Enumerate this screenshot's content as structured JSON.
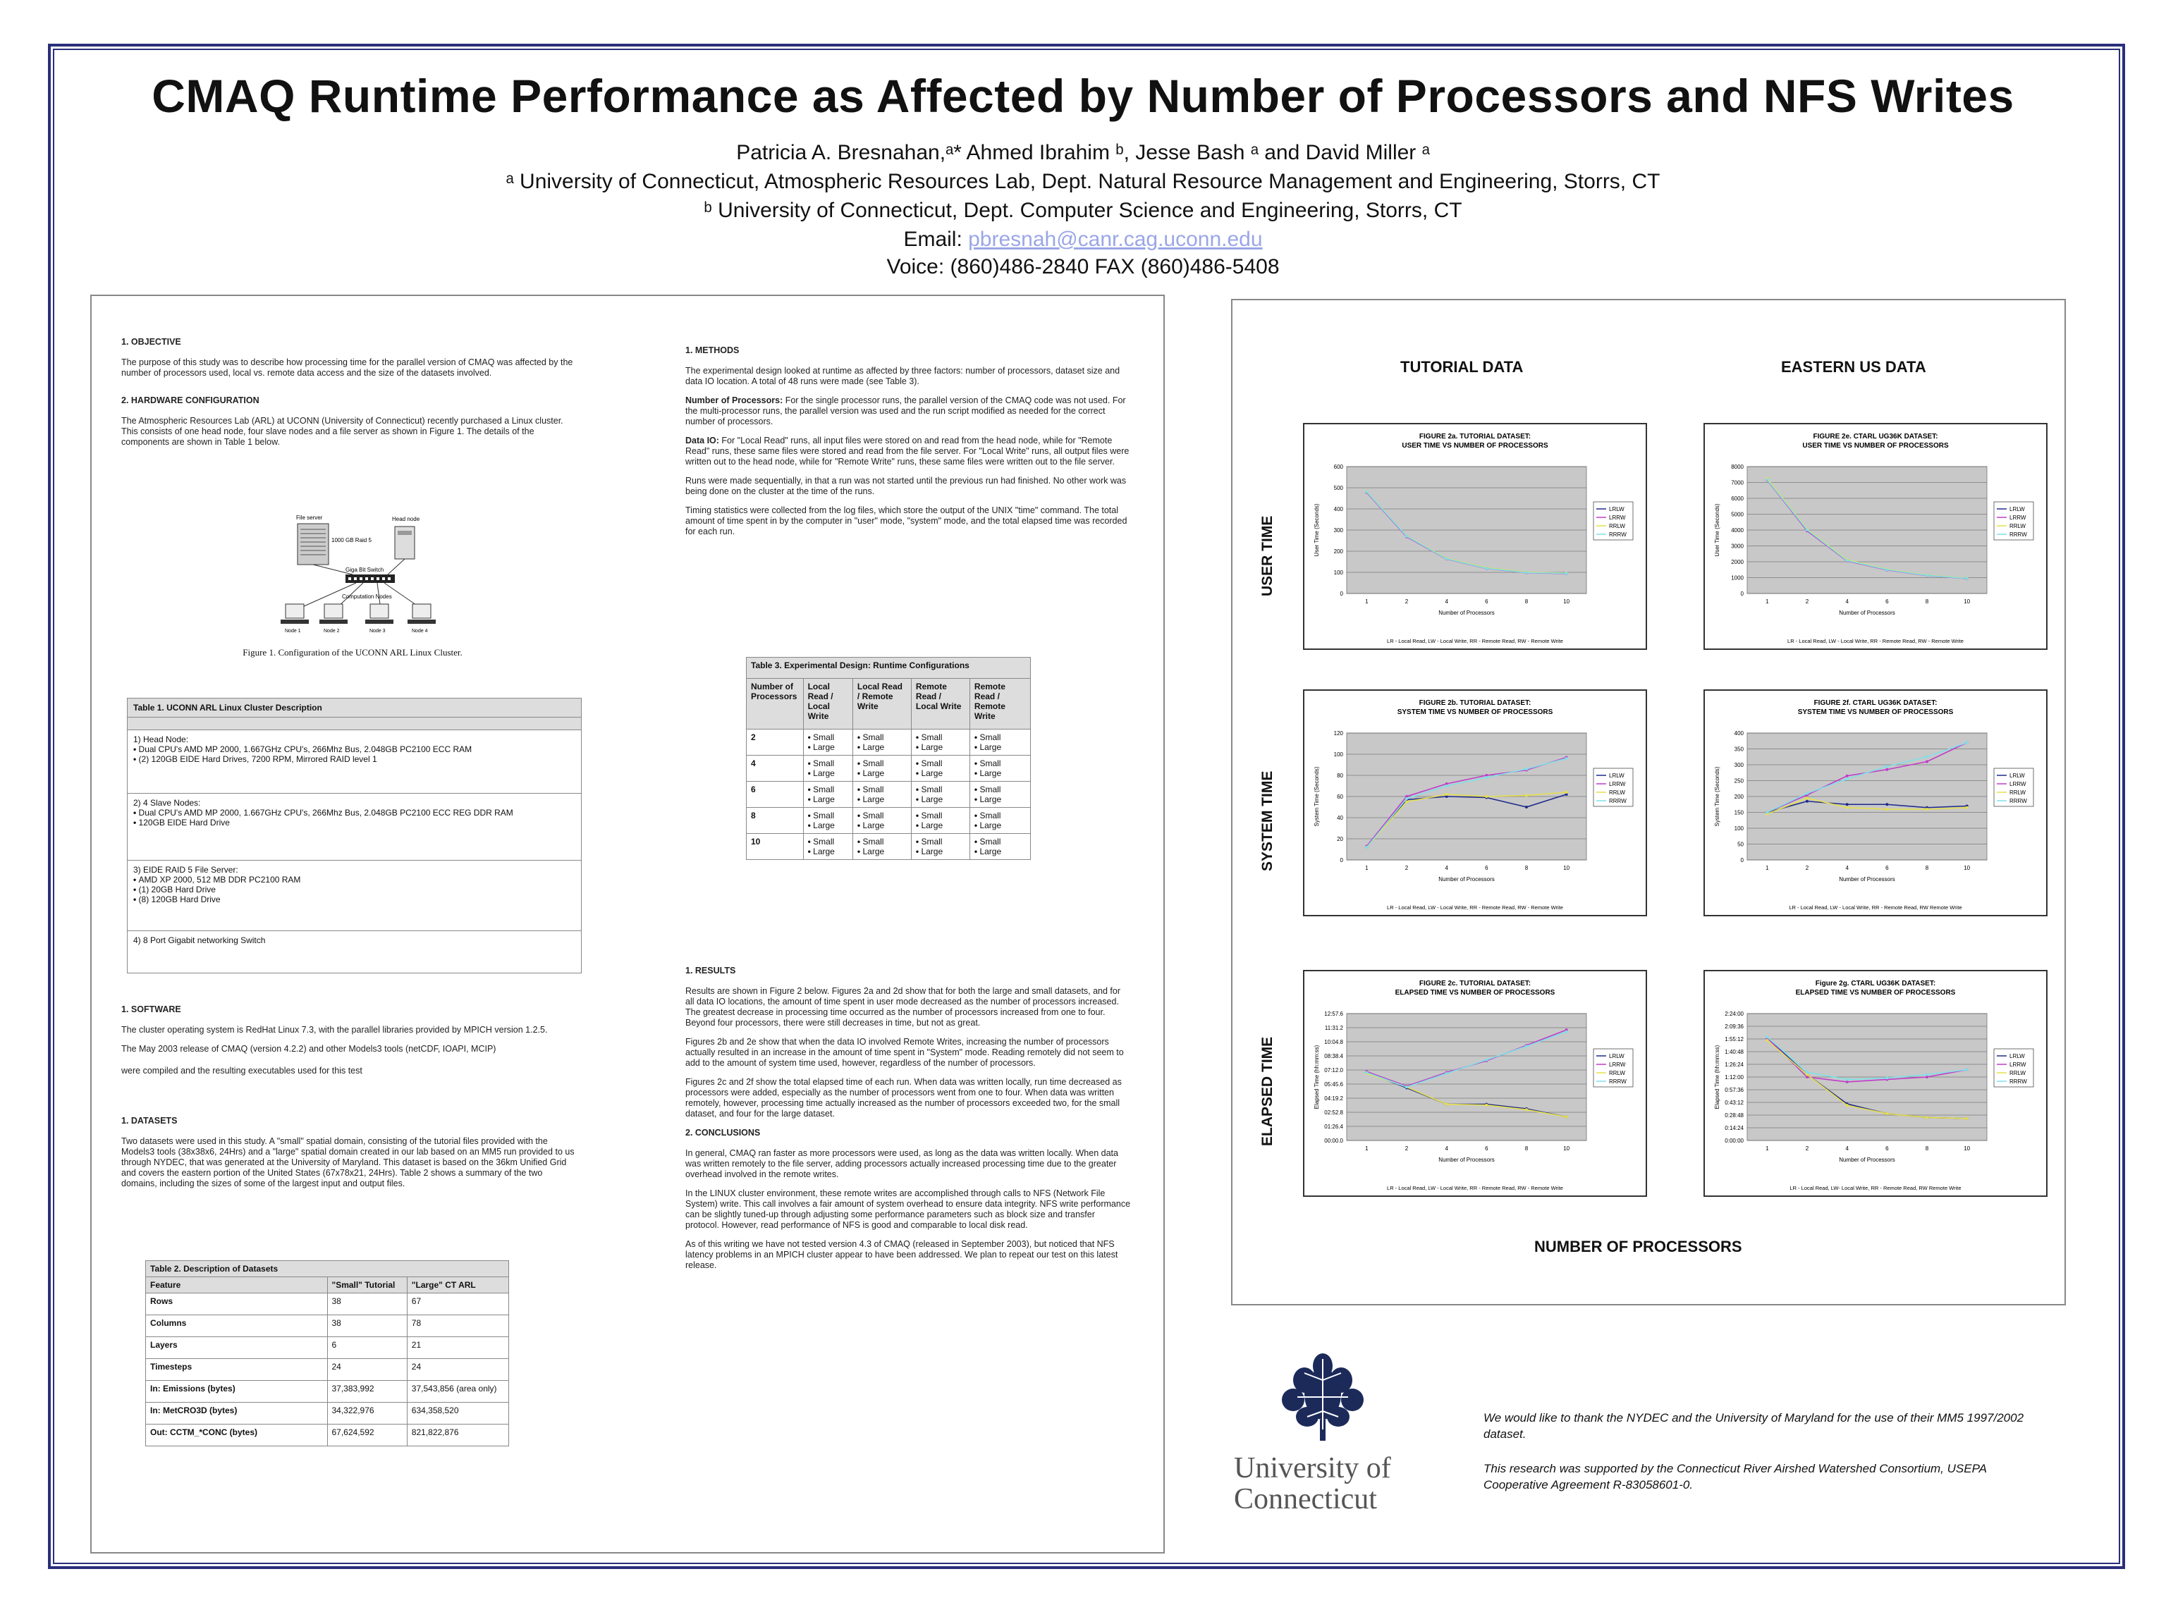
{
  "title": "CMAQ Runtime Performance as Affected by Number of Processors and NFS Writes",
  "authors": "Patricia A. Bresnahan,ᵃ*   Ahmed Ibrahim ᵇ, Jesse Bash ᵃ and David Miller ᵃ",
  "affil_a": "ᵃ University of Connecticut, Atmospheric Resources Lab, Dept. Natural Resource Management and Engineering, Storrs, CT",
  "affil_b": "ᵇ University of Connecticut, Dept. Computer Science and Engineering, Storrs, CT",
  "email_label": "Email: ",
  "email": "pbresnah@canr.cag.uconn.edu",
  "voice": "Voice: (860)486-2840   FAX (860)486-5408",
  "left": {
    "objective_hd": "1.  OBJECTIVE",
    "objective": "The purpose of this study was to describe how processing time for the parallel version of CMAQ was affected by the number of processors used, local vs. remote data access and the size of the datasets involved.",
    "hardware_hd": "2.  HARDWARE CONFIGURATION",
    "hardware": "The Atmospheric Resources Lab (ARL) at UCONN  (University of Connecticut) recently purchased a Linux cluster.  This consists of one head node, four slave nodes and a file server as shown in Figure 1.  The details of the components are shown in Table 1 below.",
    "fig1": {
      "file_server": "File server",
      "raid": "1000 GB Raid 5",
      "head_node": "Head node",
      "switch": "Giga Bit Switch",
      "comp_nodes": "Computation Nodes",
      "nodes": [
        "Node 1",
        "Node 2",
        "Node 3",
        "Node 4"
      ]
    },
    "fig1_caption": "Figure 1.  Configuration of the UCONN ARL Linux Cluster.",
    "table1": {
      "caption": "Table 1.  UCONN ARL Linux Cluster Description",
      "sections": [
        {
          "head": "1) Head Node:",
          "items": [
            "Dual CPU's AMD MP 2000, 1.667GHz CPU's, 266Mhz Bus, 2.048GB PC2100 ECC RAM",
            "(2) 120GB EIDE Hard Drives, 7200 RPM, Mirrored RAID level 1"
          ]
        },
        {
          "head": "2) 4 Slave Nodes:",
          "items": [
            "Dual CPU's AMD MP 2000, 1.667GHz CPU's, 266Mhz Bus, 2.048GB PC2100 ECC REG DDR RAM",
            "120GB EIDE Hard Drive"
          ]
        },
        {
          "head": "3) EIDE RAID 5 File Server:",
          "items": [
            "AMD XP 2000, 512 MB DDR PC2100 RAM",
            "(1) 20GB Hard Drive",
            "(8) 120GB Hard Drive"
          ]
        },
        {
          "head": "4) 8 Port Gigabit networking Switch",
          "items": []
        }
      ]
    },
    "software_hd": "1.  SOFTWARE",
    "software1": "The cluster operating system is RedHat Linux 7.3, with the parallel libraries provided by MPICH version 1.2.5.",
    "software2": "The May 2003 release of CMAQ (version 4.2.2) and other Models3 tools (netCDF, IOAPI, MCIP)",
    "software3": "were compiled and the resulting executables used for this test",
    "datasets_hd": "1.  DATASETS",
    "datasets": "Two datasets were used in this study.  A \"small\" spatial domain, consisting of the tutorial files provided with the Models3 tools (38x38x6, 24Hrs) and a \"large\" spatial domain created in our lab based on an MM5 run provided to us through NYDEC, that was generated at the University of Maryland.  This dataset is based on the 36km Unified Grid and covers the eastern portion of the United States (67x78x21, 24Hrs).  Table 2 shows a summary of the two domains, including the sizes of some of the largest input and output files.",
    "table2": {
      "caption": "Table 2.  Description of Datasets",
      "headers": [
        "Feature",
        "\"Small\" Tutorial",
        "\"Large\" CT ARL"
      ],
      "rows": [
        [
          "Rows",
          "38",
          "67"
        ],
        [
          "Columns",
          "38",
          "78"
        ],
        [
          "Layers",
          "6",
          "21"
        ],
        [
          "Timesteps",
          "24",
          "24"
        ],
        [
          "In: Emissions (bytes)",
          "37,383,992",
          "37,543,856 (area only)"
        ],
        [
          "In: MetCRO3D (bytes)",
          "34,322,976",
          "634,358,520"
        ],
        [
          "Out: CCTM_*CONC (bytes)",
          "67,624,592",
          "821,822,876"
        ]
      ]
    }
  },
  "middle": {
    "methods_hd": "1.  METHODS",
    "methods1": "The experimental design looked at runtime as affected by three factors:  number of processors, dataset size and data IO location.  A total of 48 runs were made (see Table 3).",
    "methods2_b": "Number of Processors:",
    "methods2": "  For the single processor runs, the parallel version of the CMAQ code was not used.  For the multi-processor runs, the parallel version was used and the run script modified as needed for the correct number of processors.",
    "methods3_b": "Data IO:",
    "methods3": "  For \"Local Read\" runs, all input files were stored on and read from the head node, while for \"Remote Read\" runs, these same files were stored and read from the file server.  For \"Local Write\" runs, all output files were written out to the head node, while for \"Remote Write\" runs, these same files were written out to the file server.",
    "methods4": "Runs were made sequentially, in that a run was not started until the previous run had finished.  No other work was being done on the cluster at the time of the runs.",
    "methods5": "Timing statistics were collected from the log files, which store the output of the UNIX \"time\" command.  The total amount of time spent in by the computer in \"user\" mode, \"system\" mode, and the total elapsed time was recorded for each run.",
    "table3": {
      "caption": "Table 3.  Experimental Design: Runtime Configurations",
      "headers": [
        "Number of Processors",
        "Local Read / Local Write",
        "Local Read / Remote Write",
        "Remote Read / Local Write",
        "Remote Read / Remote Write"
      ],
      "header_overlay": "Small Large",
      "rows": [
        "2",
        "4",
        "6",
        "8",
        "10"
      ],
      "cell_items": [
        "Small",
        "Large"
      ]
    },
    "results_hd": "1.  RESULTS",
    "results1": "Results are shown in Figure 2 below.  Figures 2a and 2d show that for both the large and small datasets, and for all data IO locations, the amount of time spent in user mode decreased as the number of processors increased.  The greatest decrease in processing time occurred as the number of processors increased from one to four.  Beyond four processors, there were still decreases in time, but not as great.",
    "results2": "Figures 2b and 2e show that when the data IO involved Remote Writes, increasing the number of processors actually resulted in an increase in the amount of time spent in \"System\" mode.  Reading remotely did not seem to add to the amount of system time used, however, regardless of the number of processors.",
    "results3": "Figures 2c and 2f show the total elapsed time of each run.  When data was written locally, run time decreased as processors were added, especially as the number of processors went from one to four.  When data was written remotely, however, processing time actually increased as the number of processors exceeded two, for the small dataset, and four for the large dataset.",
    "conclusions_hd": "2.  CONCLUSIONS",
    "conclusions1": "In general, CMAQ ran faster as more processors were used, as long as the data was written locally.  When data was written remotely to the file server, adding processors actually increased processing time due to the greater overhead involved in the remote writes.",
    "conclusions2": "In the LINUX cluster environment, these remote writes are accomplished through calls to NFS (Network File System) write.  This call involves a fair amount of system overhead to ensure data integrity.  NFS write performance can be slightly tuned-up through adjusting some performance parameters such as block size and transfer protocol. However, read performance of NFS is good and comparable to local disk read.",
    "conclusions3": "As of this writing we have not tested version 4.3 of CMAQ (released in September 2003), but noticed that NFS latency problems in an MPICH cluster appear to have been addressed.  We plan to repeat our test on this latest release."
  },
  "charts_panel": {
    "col_tutorial": "TUTORIAL DATA",
    "col_eastern": "EASTERN US  DATA",
    "row_user": "USER TIME",
    "row_system": "SYSTEM TIME",
    "row_elapsed": "ELAPSED  TIME",
    "footer": "NUMBER OF PROCESSORS"
  },
  "chart_data": [
    {
      "type": "line",
      "title": "FIGURE 2a. TUTORIAL DATASET:",
      "subtitle": "USER TIME VS NUMBER OF PROCESSORS",
      "xlabel": "Number of Processors",
      "ylabel": "User Time (Seconds)",
      "x": [
        1,
        2,
        4,
        6,
        8,
        10
      ],
      "ylim": [
        0,
        600
      ],
      "yticks": [
        "0",
        "100",
        "200",
        "300",
        "400",
        "500",
        "600"
      ],
      "series": [
        {
          "name": "LRLW",
          "color": "#1f2a8a",
          "values": [
            480,
            270,
            165,
            120,
            100,
            95
          ]
        },
        {
          "name": "LRRW",
          "color": "#c03cc8",
          "values": [
            478,
            268,
            163,
            118,
            98,
            94
          ]
        },
        {
          "name": "RRLW",
          "color": "#e6e04a",
          "values": [
            482,
            272,
            166,
            121,
            101,
            96
          ]
        },
        {
          "name": "RRRW",
          "color": "#7fe0e8",
          "values": [
            481,
            271,
            164,
            119,
            99,
            95
          ]
        }
      ],
      "footnote": "LR - Local Read, LW - Local Write, RR - Remote Read, RW - Remote Write"
    },
    {
      "type": "line",
      "title": "FIGURE 2e. CTARL UG36K DATASET:",
      "subtitle": "USER TIME VS NUMBER OF PROCESSORS",
      "xlabel": "Number of Processors",
      "ylabel": "User Time (Seconds)",
      "x": [
        1,
        2,
        4,
        6,
        8,
        10
      ],
      "ylim": [
        0,
        8000
      ],
      "yticks": [
        "0",
        "1000",
        "2000",
        "3000",
        "4000",
        "5000",
        "6000",
        "7000",
        "8000"
      ],
      "series": [
        {
          "name": "LRLW",
          "color": "#1f2a8a",
          "values": [
            7200,
            4000,
            2100,
            1500,
            1150,
            950
          ]
        },
        {
          "name": "LRRW",
          "color": "#c03cc8",
          "values": [
            7150,
            3950,
            2050,
            1480,
            1130,
            940
          ]
        },
        {
          "name": "RRLW",
          "color": "#e6e04a",
          "values": [
            7250,
            4050,
            2120,
            1520,
            1160,
            960
          ]
        },
        {
          "name": "RRRW",
          "color": "#7fe0e8",
          "values": [
            7180,
            4010,
            2080,
            1500,
            1140,
            950
          ]
        }
      ],
      "footnote": "LR - Local Read, LW - Local Write, RR - Remote Read, RW - Remote Write"
    },
    {
      "type": "line",
      "title": "FIGURE 2b. TUTORIAL DATASET:",
      "subtitle": "SYSTEM TIME VS NUMBER OF PROCESSORS",
      "xlabel": "Number of Processors",
      "ylabel": "System Time (Seconds)",
      "x": [
        1,
        2,
        4,
        6,
        8,
        10
      ],
      "ylim": [
        0,
        120
      ],
      "yticks": [
        "0",
        "20",
        "40",
        "60",
        "80",
        "100",
        "120"
      ],
      "series": [
        {
          "name": "LRLW",
          "color": "#1f2a8a",
          "values": [
            12,
            57,
            60,
            59,
            50,
            62
          ]
        },
        {
          "name": "LRRW",
          "color": "#c03cc8",
          "values": [
            13,
            60,
            72,
            80,
            85,
            97
          ]
        },
        {
          "name": "RRLW",
          "color": "#e6e04a",
          "values": [
            12,
            55,
            62,
            60,
            61,
            64
          ]
        },
        {
          "name": "RRRW",
          "color": "#7fe0e8",
          "values": [
            12,
            58,
            70,
            78,
            86,
            96
          ]
        }
      ],
      "footnote": "LR - Local Read, LW - Local Write, RR - Remote Read, RW - Remote Write"
    },
    {
      "type": "line",
      "title": "FIGURE 2f. CTARL UG36K DATASET:",
      "subtitle": "SYSTEM TIME VS NUMBER OF PROCESSORS",
      "xlabel": "Number of Processors",
      "ylabel": "System Time (Seconds)",
      "x": [
        1,
        2,
        4,
        6,
        8,
        10
      ],
      "ylim": [
        0,
        400
      ],
      "yticks": [
        "0",
        "50",
        "100",
        "150",
        "200",
        "250",
        "300",
        "350",
        "400"
      ],
      "series": [
        {
          "name": "LRLW",
          "color": "#1f2a8a",
          "values": [
            150,
            185,
            175,
            175,
            165,
            170
          ]
        },
        {
          "name": "LRRW",
          "color": "#c03cc8",
          "values": [
            150,
            205,
            265,
            285,
            310,
            370
          ]
        },
        {
          "name": "RRLW",
          "color": "#e6e04a",
          "values": [
            145,
            195,
            165,
            160,
            160,
            165
          ]
        },
        {
          "name": "RRRW",
          "color": "#7fe0e8",
          "values": [
            150,
            210,
            255,
            295,
            325,
            370
          ]
        }
      ],
      "footnote": "LR - Local Read, LW - Local Write, RR - Remote Read, RW Remote Write"
    },
    {
      "type": "line",
      "title": "FIGURE 2c. TUTORIAL DATASET:",
      "subtitle": "ELAPSED TIME VS NUMBER OF PROCESSORS",
      "xlabel": "Number of Processors",
      "ylabel": "Elapsed Time (hh:mm:ss)",
      "x": [
        1,
        2,
        4,
        6,
        8,
        10
      ],
      "ylim": [
        0,
        14
      ],
      "yticks": [
        "00:00.0",
        "01:26.4",
        "02:52.8",
        "04:19.2",
        "05:45.6",
        "07:12.0",
        "08:38.4",
        "10:04.8",
        "11:31.2",
        "12:57.6"
      ],
      "series": [
        {
          "name": "LRLW",
          "color": "#1f2a8a",
          "values": [
            7.5,
            5.8,
            4.0,
            4.0,
            3.5,
            2.6
          ]
        },
        {
          "name": "LRRW",
          "color": "#c03cc8",
          "values": [
            7.6,
            6.0,
            7.5,
            8.8,
            10.5,
            12.2
          ]
        },
        {
          "name": "RRLW",
          "color": "#e6e04a",
          "values": [
            7.4,
            5.9,
            4.0,
            3.9,
            3.4,
            2.6
          ]
        },
        {
          "name": "RRRW",
          "color": "#7fe0e8",
          "values": [
            7.5,
            5.9,
            7.4,
            8.9,
            10.4,
            12.0
          ]
        }
      ],
      "footnote": "LR - Local Read, LW - Local Write, RR - Remote Read, RW - Remote Write"
    },
    {
      "type": "line",
      "title": "Figure 2g. CTARL UG36K DATASET:",
      "subtitle": "ELAPSED TIME VS NUMBER OF PROCESSORS",
      "xlabel": "Number of Processors",
      "ylabel": "Elapsed Time (hh:mm:ss)",
      "x": [
        1,
        2,
        4,
        6,
        8,
        10
      ],
      "ylim": [
        0,
        2.6
      ],
      "yticks": [
        "0:00:00",
        "0:14:24",
        "0:28:48",
        "0:43:12",
        "0:57:36",
        "1:12:00",
        "1:26:24",
        "1:40:48",
        "1:55:12",
        "2:09:36",
        "2:24:00"
      ],
      "series": [
        {
          "name": "LRLW",
          "color": "#1f2a8a",
          "values": [
            2.1,
            1.35,
            0.75,
            0.55,
            0.47,
            0.45
          ]
        },
        {
          "name": "LRRW",
          "color": "#c03cc8",
          "values": [
            2.1,
            1.3,
            1.2,
            1.25,
            1.3,
            1.45
          ]
        },
        {
          "name": "RRLW",
          "color": "#e6e04a",
          "values": [
            2.05,
            1.35,
            0.72,
            0.55,
            0.47,
            0.45
          ]
        },
        {
          "name": "RRRW",
          "color": "#7fe0e8",
          "values": [
            2.12,
            1.4,
            1.25,
            1.28,
            1.35,
            1.45
          ]
        }
      ],
      "footnote": "LR - Local Read, LW- Local Write, RR - Remote Read, RW Remote Write"
    }
  ],
  "logo": {
    "line1": "University of",
    "line2": "Connecticut"
  },
  "ack1": "We would like to thank the NYDEC and the University of Maryland for the use of their MM5 1997/2002 dataset.",
  "ack2": "This research was supported by the Connecticut River Airshed Watershed Consortium, USEPA Cooperative Agreement R-83058601-0."
}
